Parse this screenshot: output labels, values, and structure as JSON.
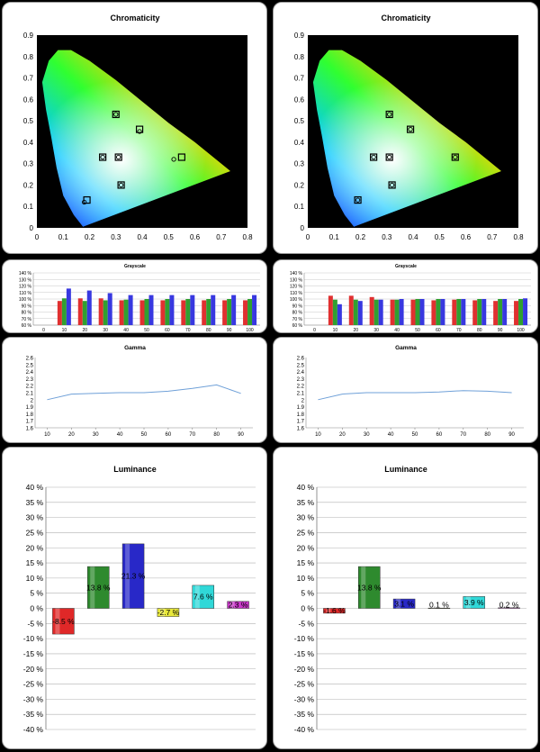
{
  "chart_data": [
    {
      "type": "scatter",
      "id": "chroma-left",
      "title": "Chromaticity",
      "xlim": [
        0,
        0.8
      ],
      "ylim": [
        0,
        0.9
      ],
      "xticks": [
        "0",
        "0.1",
        "0.2",
        "0.3",
        "0.4",
        "0.5",
        "0.6",
        "0.7",
        "0.8"
      ],
      "yticks": [
        "0",
        "0.1",
        "0.2",
        "0.3",
        "0.4",
        "0.5",
        "0.6",
        "0.7",
        "0.8",
        "0.9"
      ],
      "targets": [
        {
          "name": "red",
          "x": 0.55,
          "y": 0.33
        },
        {
          "name": "green",
          "x": 0.3,
          "y": 0.53
        },
        {
          "name": "blue",
          "x": 0.19,
          "y": 0.13
        },
        {
          "name": "white",
          "x": 0.31,
          "y": 0.33
        },
        {
          "name": "cyan",
          "x": 0.25,
          "y": 0.33
        },
        {
          "name": "magenta",
          "x": 0.32,
          "y": 0.2
        },
        {
          "name": "yellow",
          "x": 0.39,
          "y": 0.46
        }
      ],
      "measured": [
        {
          "name": "red",
          "x": 0.52,
          "y": 0.32
        },
        {
          "name": "green",
          "x": 0.3,
          "y": 0.53
        },
        {
          "name": "blue",
          "x": 0.18,
          "y": 0.12
        },
        {
          "name": "white",
          "x": 0.31,
          "y": 0.33
        },
        {
          "name": "cyan",
          "x": 0.25,
          "y": 0.33
        },
        {
          "name": "magenta",
          "x": 0.32,
          "y": 0.2
        },
        {
          "name": "yellow",
          "x": 0.39,
          "y": 0.45
        }
      ]
    },
    {
      "type": "scatter",
      "id": "chroma-right",
      "title": "Chromaticity",
      "xlim": [
        0,
        0.8
      ],
      "ylim": [
        0,
        0.9
      ],
      "xticks": [
        "0",
        "0.1",
        "0.2",
        "0.3",
        "0.4",
        "0.5",
        "0.6",
        "0.7",
        "0.8"
      ],
      "yticks": [
        "0",
        "0.1",
        "0.2",
        "0.3",
        "0.4",
        "0.5",
        "0.6",
        "0.7",
        "0.8",
        "0.9"
      ],
      "targets": [
        {
          "name": "red",
          "x": 0.56,
          "y": 0.33
        },
        {
          "name": "green",
          "x": 0.31,
          "y": 0.53
        },
        {
          "name": "blue",
          "x": 0.19,
          "y": 0.13
        },
        {
          "name": "white",
          "x": 0.31,
          "y": 0.33
        },
        {
          "name": "cyan",
          "x": 0.25,
          "y": 0.33
        },
        {
          "name": "magenta",
          "x": 0.32,
          "y": 0.2
        },
        {
          "name": "yellow",
          "x": 0.39,
          "y": 0.46
        }
      ],
      "measured": [
        {
          "name": "red",
          "x": 0.56,
          "y": 0.33
        },
        {
          "name": "green",
          "x": 0.31,
          "y": 0.53
        },
        {
          "name": "blue",
          "x": 0.19,
          "y": 0.13
        },
        {
          "name": "white",
          "x": 0.31,
          "y": 0.33
        },
        {
          "name": "cyan",
          "x": 0.25,
          "y": 0.33
        },
        {
          "name": "magenta",
          "x": 0.32,
          "y": 0.2
        },
        {
          "name": "yellow",
          "x": 0.39,
          "y": 0.46
        }
      ]
    },
    {
      "type": "bar",
      "id": "gray-left",
      "title": "Grayscale",
      "ylim": [
        60,
        140
      ],
      "yticks": [
        "60 %",
        "70 %",
        "80 %",
        "90 %",
        "100 %",
        "110 %",
        "120 %",
        "130 %",
        "140 %"
      ],
      "categories": [
        "0",
        "10",
        "20",
        "30",
        "40",
        "50",
        "60",
        "70",
        "80",
        "90",
        "100"
      ],
      "series": [
        {
          "color": "#e03030",
          "values": [
            null,
            97,
            101,
            101,
            98,
            98,
            98,
            98,
            98,
            98,
            98
          ]
        },
        {
          "color": "#30a030",
          "values": [
            null,
            101,
            97,
            98,
            99,
            100,
            100,
            100,
            100,
            100,
            100
          ]
        },
        {
          "color": "#3838e0",
          "values": [
            null,
            116,
            113,
            109,
            106,
            106,
            106,
            106,
            106,
            106,
            106
          ]
        }
      ]
    },
    {
      "type": "bar",
      "id": "gray-right",
      "title": "Grayscale",
      "ylim": [
        60,
        140
      ],
      "yticks": [
        "60 %",
        "70 %",
        "80 %",
        "90 %",
        "100 %",
        "110 %",
        "120 %",
        "130 %",
        "140 %"
      ],
      "categories": [
        "0",
        "10",
        "20",
        "30",
        "40",
        "50",
        "60",
        "70",
        "80",
        "90",
        "100"
      ],
      "series": [
        {
          "color": "#e03030",
          "values": [
            null,
            105,
            105,
            103,
            99,
            99,
            98,
            99,
            98,
            97,
            97
          ]
        },
        {
          "color": "#30a030",
          "values": [
            null,
            99,
            99,
            99,
            99,
            100,
            100,
            100,
            100,
            100,
            100
          ]
        },
        {
          "color": "#3838e0",
          "values": [
            null,
            92,
            97,
            99,
            100,
            100,
            100,
            100,
            100,
            100,
            101
          ]
        }
      ]
    },
    {
      "type": "line",
      "id": "gamma-left",
      "title": "Gamma",
      "ylim": [
        1.6,
        2.6
      ],
      "yticks": [
        "1.6",
        "1.7",
        "1.8",
        "1.9",
        "2",
        "2.1",
        "2.2",
        "2.3",
        "2.4",
        "2.5",
        "2.6"
      ],
      "categories": [
        "10",
        "20",
        "30",
        "40",
        "50",
        "60",
        "70",
        "80",
        "90"
      ],
      "xlim": [
        5,
        95
      ],
      "series": [
        {
          "color": "#6fa0d8",
          "x": [
            10,
            20,
            30,
            40,
            50,
            60,
            70,
            80,
            90
          ],
          "values": [
            2.0,
            2.08,
            2.09,
            2.1,
            2.1,
            2.12,
            2.16,
            2.21,
            2.09
          ]
        }
      ]
    },
    {
      "type": "line",
      "id": "gamma-right",
      "title": "Gamma",
      "ylim": [
        1.6,
        2.6
      ],
      "yticks": [
        "1.6",
        "1.7",
        "1.8",
        "1.9",
        "2",
        "2.1",
        "2.2",
        "2.3",
        "2.4",
        "2.5",
        "2.6"
      ],
      "categories": [
        "10",
        "20",
        "30",
        "40",
        "50",
        "60",
        "70",
        "80",
        "90"
      ],
      "xlim": [
        5,
        95
      ],
      "series": [
        {
          "color": "#6fa0d8",
          "x": [
            10,
            20,
            30,
            40,
            50,
            60,
            70,
            80,
            90
          ],
          "values": [
            2.0,
            2.08,
            2.1,
            2.1,
            2.1,
            2.11,
            2.13,
            2.12,
            2.1
          ]
        }
      ]
    },
    {
      "type": "bar",
      "id": "lum-left",
      "title": "Luminance",
      "ylim": [
        -40,
        40
      ],
      "yticks": [
        "-40 %",
        "-35 %",
        "-30 %",
        "-25 %",
        "-20 %",
        "-15 %",
        "-10 %",
        "-5 %",
        "0 %",
        "5 %",
        "10 %",
        "15 %",
        "20 %",
        "25 %",
        "30 %",
        "35 %",
        "40 %"
      ],
      "bars": [
        {
          "value": -8.5,
          "label": "-8.5 %",
          "color": "#e02828"
        },
        {
          "value": 13.8,
          "label": "13.8 %",
          "color": "#2e8a2e"
        },
        {
          "value": 21.3,
          "label": "21.3 %",
          "color": "#2828c8"
        },
        {
          "value": -2.7,
          "label": "-2.7 %",
          "color": "#e8e83a"
        },
        {
          "value": 7.6,
          "label": "7.6 %",
          "color": "#30d8d8"
        },
        {
          "value": 2.3,
          "label": "2.3 %",
          "color": "#c838c8"
        }
      ]
    },
    {
      "type": "bar",
      "id": "lum-right",
      "title": "Luminance",
      "ylim": [
        -40,
        40
      ],
      "yticks": [
        "-40 %",
        "-35 %",
        "-30 %",
        "-25 %",
        "-20 %",
        "-15 %",
        "-10 %",
        "-5 %",
        "0 %",
        "5 %",
        "10 %",
        "15 %",
        "20 %",
        "25 %",
        "30 %",
        "35 %",
        "40 %"
      ],
      "bars": [
        {
          "value": -1.6,
          "label": "-1.6 %",
          "color": "#e02828"
        },
        {
          "value": 13.8,
          "label": "13.8 %",
          "color": "#2e8a2e"
        },
        {
          "value": 3.1,
          "label": "3.1 %",
          "color": "#2828c8"
        },
        {
          "value": 0.1,
          "label": "0.1 %",
          "color": "#e8e83a"
        },
        {
          "value": 3.9,
          "label": "3.9 %",
          "color": "#30d8d8"
        },
        {
          "value": 0.2,
          "label": "0.2 %",
          "color": "#c838c8"
        }
      ]
    }
  ]
}
